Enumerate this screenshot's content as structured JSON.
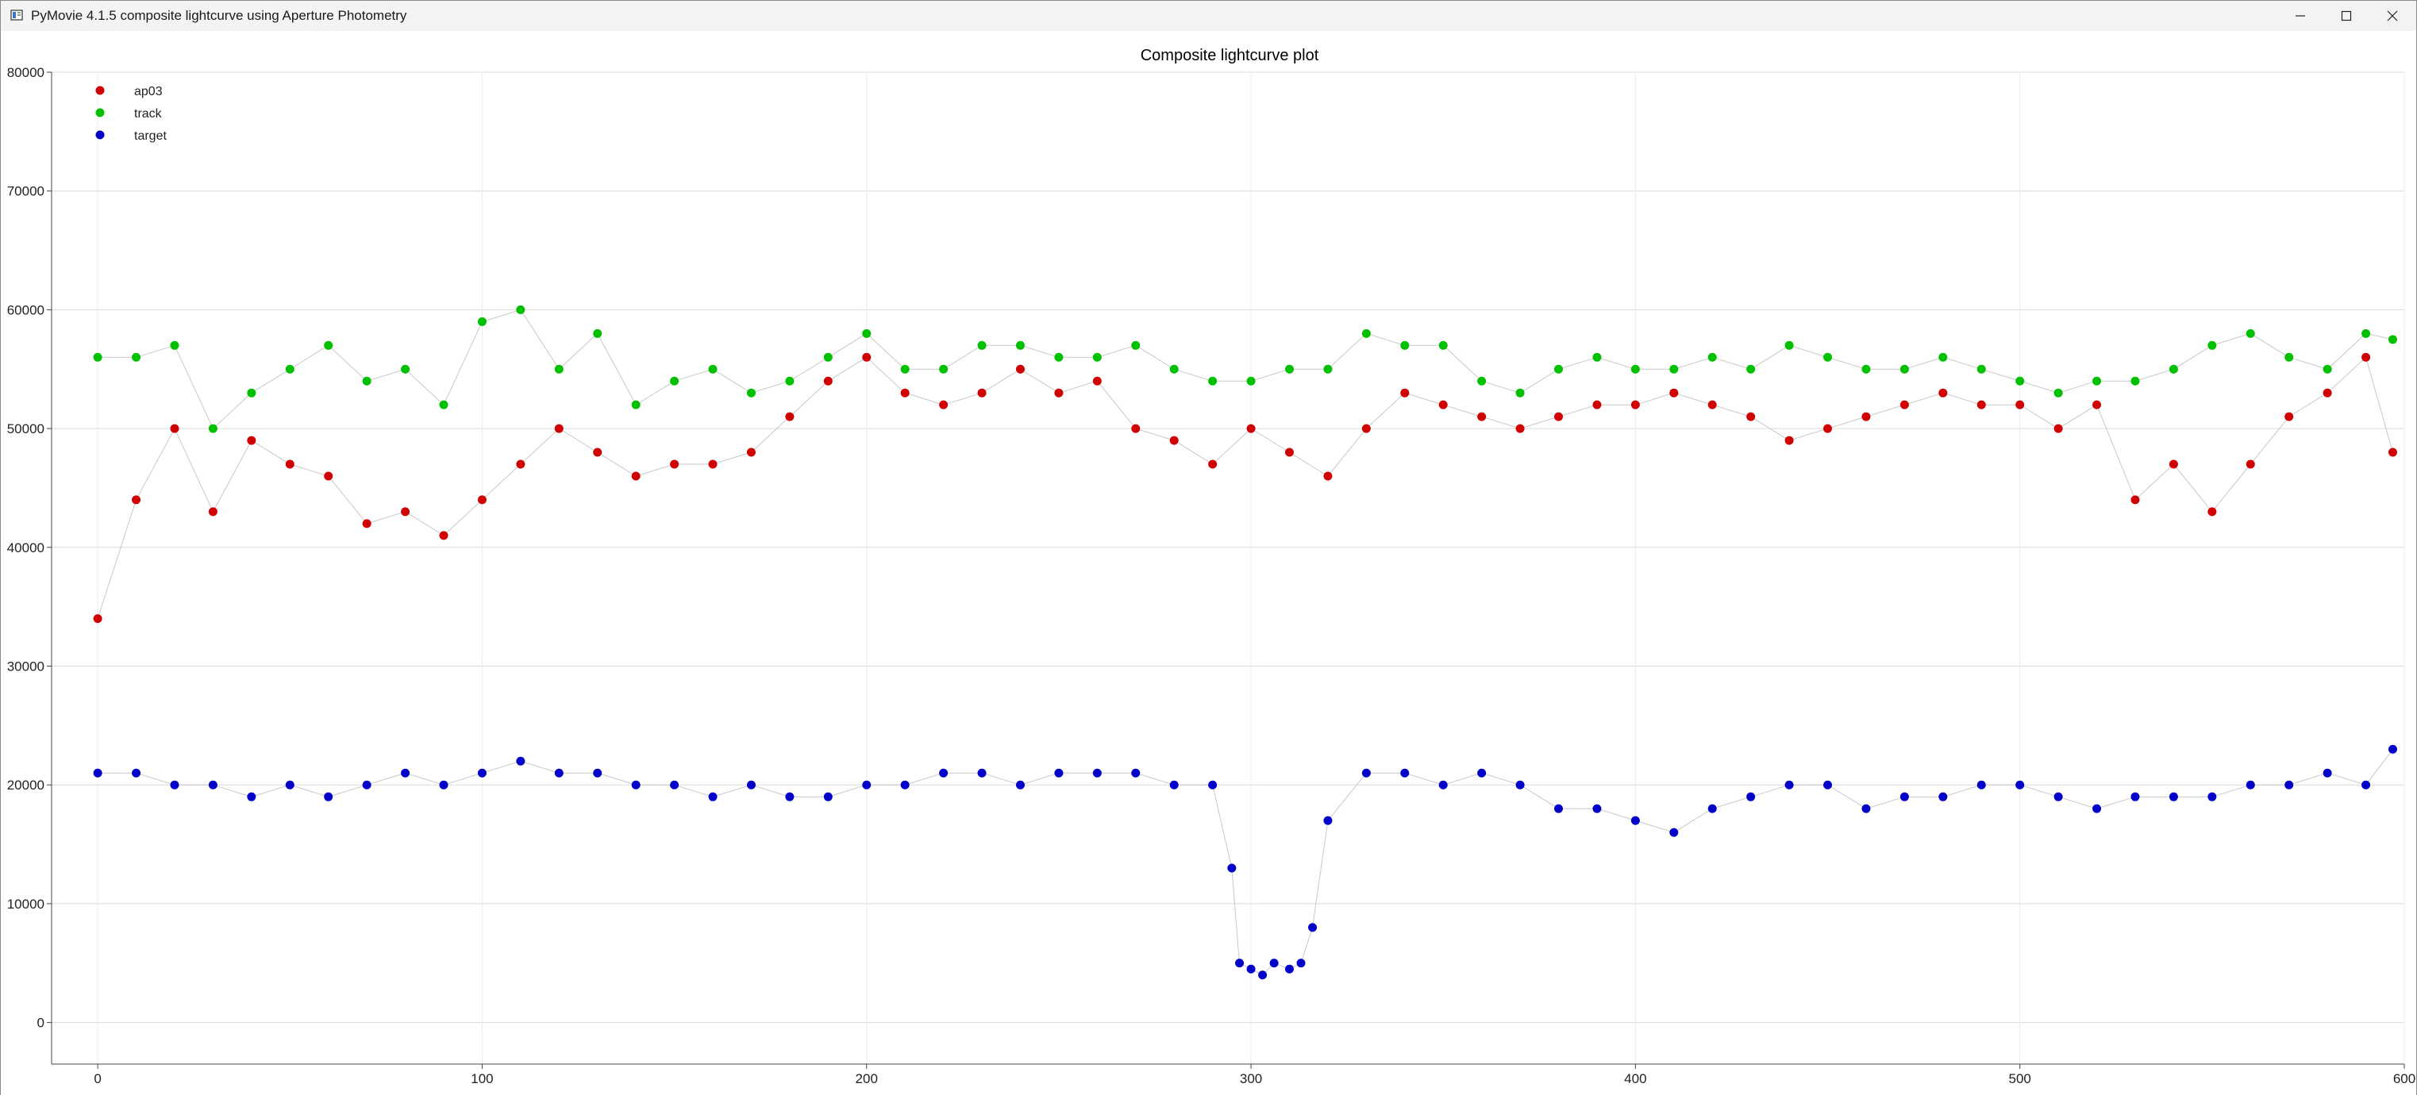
{
  "window": {
    "title": "PyMovie 4.1.5 composite lightcurve using Aperture Photometry",
    "minimize_icon": "minimize-icon",
    "maximize_icon": "maximize-icon",
    "close_icon": "close-icon"
  },
  "chart_data": {
    "type": "scatter",
    "title": "Composite lightcurve plot",
    "xlabel": "",
    "ylabel": "",
    "xlim": [
      -12,
      600
    ],
    "ylim": [
      -3500,
      80000
    ],
    "xticks": [
      0,
      100,
      200,
      300,
      400,
      500,
      600
    ],
    "yticks": [
      0,
      10000,
      20000,
      30000,
      40000,
      50000,
      60000,
      70000,
      80000
    ],
    "grid": true,
    "legend_position": "top-left",
    "connecting_line_color": "#c8c8c8",
    "series": [
      {
        "name": "ap03",
        "color": "#d00000",
        "x": [
          0,
          10,
          20,
          30,
          40,
          50,
          60,
          70,
          80,
          90,
          100,
          110,
          120,
          130,
          140,
          150,
          160,
          170,
          180,
          190,
          200,
          210,
          220,
          230,
          240,
          250,
          260,
          270,
          280,
          290,
          300,
          310,
          320,
          330,
          340,
          350,
          360,
          370,
          380,
          390,
          400,
          410,
          420,
          430,
          440,
          450,
          460,
          470,
          480,
          490,
          500,
          510,
          520,
          530,
          540,
          550,
          560,
          570,
          580,
          590,
          597
        ],
        "y": [
          34000,
          44000,
          50000,
          43000,
          49000,
          47000,
          46000,
          42000,
          43000,
          41000,
          44000,
          47000,
          50000,
          48000,
          46000,
          47000,
          47000,
          48000,
          51000,
          54000,
          56000,
          53000,
          52000,
          53000,
          55000,
          53000,
          54000,
          50000,
          49000,
          47000,
          50000,
          48000,
          46000,
          50000,
          53000,
          52000,
          51000,
          50000,
          51000,
          52000,
          52000,
          53000,
          52000,
          51000,
          49000,
          50000,
          51000,
          52000,
          53000,
          52000,
          52000,
          50000,
          52000,
          44000,
          47000,
          43000,
          47000,
          51000,
          53000,
          56000,
          48000
        ]
      },
      {
        "name": "track",
        "color": "#00c000",
        "x": [
          0,
          10,
          20,
          30,
          40,
          50,
          60,
          70,
          80,
          90,
          100,
          110,
          120,
          130,
          140,
          150,
          160,
          170,
          180,
          190,
          200,
          210,
          220,
          230,
          240,
          250,
          260,
          270,
          280,
          290,
          300,
          310,
          320,
          330,
          340,
          350,
          360,
          370,
          380,
          390,
          400,
          410,
          420,
          430,
          440,
          450,
          460,
          470,
          480,
          490,
          500,
          510,
          520,
          530,
          540,
          550,
          560,
          570,
          580,
          590,
          597
        ],
        "y": [
          56000,
          56000,
          57000,
          50000,
          53000,
          55000,
          57000,
          54000,
          55000,
          52000,
          59000,
          60000,
          55000,
          58000,
          52000,
          54000,
          55000,
          53000,
          54000,
          56000,
          58000,
          55000,
          55000,
          57000,
          57000,
          56000,
          56000,
          57000,
          55000,
          54000,
          54000,
          55000,
          55000,
          58000,
          57000,
          57000,
          54000,
          53000,
          55000,
          56000,
          55000,
          55000,
          56000,
          55000,
          57000,
          56000,
          55000,
          55000,
          56000,
          55000,
          54000,
          53000,
          54000,
          54000,
          55000,
          57000,
          58000,
          56000,
          55000,
          58000,
          57500
        ]
      },
      {
        "name": "target",
        "color": "#0000c8",
        "x": [
          0,
          10,
          20,
          30,
          40,
          50,
          60,
          70,
          80,
          90,
          100,
          110,
          120,
          130,
          140,
          150,
          160,
          170,
          180,
          190,
          200,
          210,
          220,
          230,
          240,
          250,
          260,
          270,
          280,
          290,
          295,
          297,
          300,
          303,
          306,
          310,
          313,
          316,
          320,
          330,
          340,
          350,
          360,
          370,
          380,
          390,
          400,
          410,
          420,
          430,
          440,
          450,
          460,
          470,
          480,
          490,
          500,
          510,
          520,
          530,
          540,
          550,
          560,
          570,
          580,
          590,
          597
        ],
        "y": [
          21000,
          21000,
          20000,
          20000,
          19000,
          20000,
          19000,
          20000,
          21000,
          20000,
          21000,
          22000,
          21000,
          21000,
          20000,
          20000,
          19000,
          20000,
          19000,
          19000,
          20000,
          20000,
          21000,
          21000,
          20000,
          21000,
          21000,
          21000,
          20000,
          20000,
          13000,
          5000,
          4500,
          4000,
          5000,
          4500,
          5000,
          8000,
          17000,
          21000,
          21000,
          20000,
          21000,
          20000,
          18000,
          18000,
          17000,
          16000,
          18000,
          19000,
          20000,
          20000,
          18000,
          19000,
          19000,
          20000,
          20000,
          19000,
          18000,
          19000,
          19000,
          19000,
          20000,
          20000,
          21000,
          20000,
          23000
        ]
      }
    ]
  }
}
